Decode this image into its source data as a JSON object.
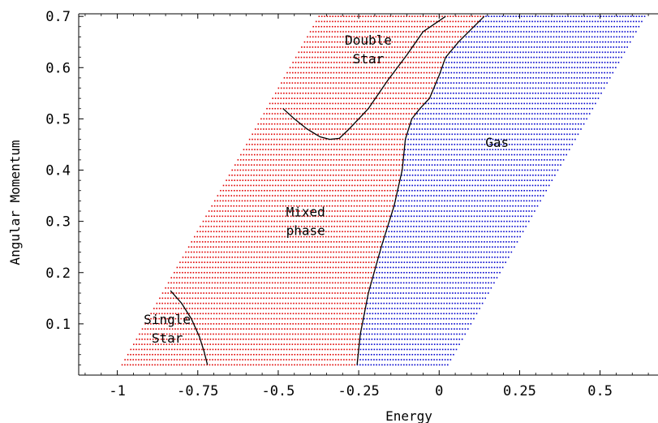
{
  "chart_data": {
    "type": "scatter",
    "title": "",
    "xlabel": "Energy",
    "ylabel": "Angular Momentum",
    "xlim": [
      -1.12,
      0.68
    ],
    "ylim": [
      0.0,
      0.705
    ],
    "x_ticks": [
      {
        "value": -1,
        "label": "-1"
      },
      {
        "value": -0.75,
        "label": "-0.75"
      },
      {
        "value": -0.5,
        "label": "-0.5"
      },
      {
        "value": -0.25,
        "label": "-0.25"
      },
      {
        "value": 0,
        "label": "0"
      },
      {
        "value": 0.25,
        "label": "0.25"
      },
      {
        "value": 0.5,
        "label": "0.5"
      }
    ],
    "y_ticks": [
      {
        "value": 0.1,
        "label": "0.1"
      },
      {
        "value": 0.2,
        "label": "0.2"
      },
      {
        "value": 0.3,
        "label": "0.3"
      },
      {
        "value": 0.4,
        "label": "0.4"
      },
      {
        "value": 0.5,
        "label": "0.5"
      },
      {
        "value": 0.6,
        "label": "0.6"
      },
      {
        "value": 0.7,
        "label": "0.7"
      }
    ],
    "grid": false,
    "legend": "none",
    "colors": {
      "mixed_phase": "#e00000",
      "gas": "#0000cc",
      "boundary": "#000000"
    },
    "sampling": {
      "l_min": 0.02,
      "l_max": 0.7,
      "l_step": 0.01,
      "e_step": 0.0085,
      "left_edge": {
        "e_at_l_min": -0.985,
        "slope": 0.9
      },
      "right_edge": {
        "e_at_l_min": 0.03,
        "slope": 0.9
      }
    },
    "series": [
      {
        "color_key": "mixed_phase"
      },
      {
        "color_key": "gas"
      }
    ],
    "boundaries": {
      "single_star": [
        [
          -0.835,
          0.165
        ],
        [
          -0.8,
          0.14
        ],
        [
          -0.77,
          0.11
        ],
        [
          -0.745,
          0.075
        ],
        [
          -0.73,
          0.045
        ],
        [
          -0.72,
          0.02
        ]
      ],
      "double_star": [
        [
          -0.485,
          0.52
        ],
        [
          -0.45,
          0.5
        ],
        [
          -0.41,
          0.48
        ],
        [
          -0.37,
          0.465
        ],
        [
          -0.34,
          0.46
        ],
        [
          -0.31,
          0.462
        ],
        [
          -0.28,
          0.48
        ],
        [
          -0.22,
          0.52
        ],
        [
          -0.16,
          0.575
        ],
        [
          -0.1,
          0.625
        ],
        [
          -0.05,
          0.67
        ],
        [
          0.02,
          0.7
        ]
      ],
      "gas_line": [
        [
          -0.255,
          0.02
        ],
        [
          -0.245,
          0.08
        ],
        [
          -0.22,
          0.16
        ],
        [
          -0.18,
          0.25
        ],
        [
          -0.14,
          0.33
        ],
        [
          -0.115,
          0.4
        ],
        [
          -0.105,
          0.46
        ],
        [
          -0.085,
          0.5
        ],
        [
          -0.06,
          0.52
        ],
        [
          -0.03,
          0.54
        ],
        [
          0.0,
          0.585
        ],
        [
          0.02,
          0.62
        ],
        [
          0.06,
          0.65
        ],
        [
          0.1,
          0.675
        ],
        [
          0.14,
          0.7
        ]
      ]
    },
    "annotations": [
      {
        "lines": [
          "Double",
          "Star"
        ],
        "x": -0.22,
        "y": 0.645
      },
      {
        "lines": [
          "Gas"
        ],
        "x": 0.18,
        "y": 0.445
      },
      {
        "lines": [
          "Mixed",
          "phase"
        ],
        "x": -0.415,
        "y": 0.31
      },
      {
        "lines": [
          "Single",
          "Star"
        ],
        "x": -0.845,
        "y": 0.1
      }
    ]
  }
}
